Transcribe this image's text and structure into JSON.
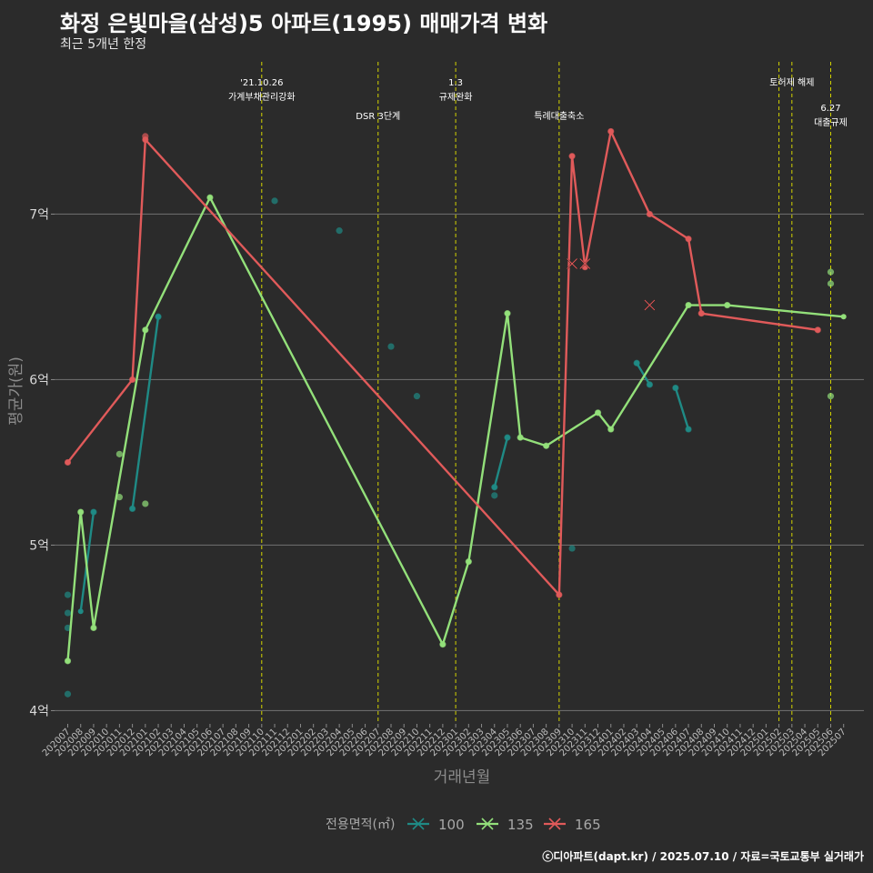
{
  "header": {
    "title": "화정 은빛마을(삼성)5 아파트(1995) 매매가격 변화",
    "subtitle": "최근 5개년 한정"
  },
  "footer": {
    "caption": "ⓒ디아파트(dapt.kr) / 2025.07.10 / 자료=국토교통부 실거래가"
  },
  "colors": {
    "background": "#2b2b2b",
    "grid": "#6a6a6a",
    "event_line": "#d4d400",
    "100": "#1f8a85",
    "135": "#93e07a",
    "165": "#e05a5a"
  },
  "chart_data": {
    "type": "line",
    "title": "화정 은빛마을(삼성)5 아파트(1995) 매매가격 변화",
    "subtitle": "최근 5개년 한정",
    "xlabel": "거래년월",
    "ylabel": "평균가(원)",
    "x_categories": [
      "202007",
      "202008",
      "202009",
      "202010",
      "202011",
      "202012",
      "202101",
      "202102",
      "202103",
      "202104",
      "202105",
      "202106",
      "202107",
      "202108",
      "202109",
      "202110",
      "202111",
      "202112",
      "202201",
      "202202",
      "202203",
      "202204",
      "202205",
      "202206",
      "202207",
      "202208",
      "202209",
      "202210",
      "202211",
      "202212",
      "202301",
      "202302",
      "202303",
      "202304",
      "202305",
      "202306",
      "202307",
      "202308",
      "202309",
      "202310",
      "202311",
      "202312",
      "202401",
      "202402",
      "202403",
      "202404",
      "202405",
      "202406",
      "202407",
      "202408",
      "202409",
      "202410",
      "202411",
      "202412",
      "202501",
      "202502",
      "202503",
      "202504",
      "202505",
      "202506",
      "202507"
    ],
    "y_ticks": [
      {
        "value": 4.0,
        "label": "4억"
      },
      {
        "value": 5.0,
        "label": "5억"
      },
      {
        "value": 6.0,
        "label": "6억"
      },
      {
        "value": 7.0,
        "label": "7억"
      }
    ],
    "ylim": [
      3.92,
      7.92
    ],
    "y_unit": "억",
    "grid": true,
    "legend": {
      "title": "전용면적(㎡)",
      "position": "bottom",
      "entries": [
        "100",
        "135",
        "165"
      ]
    },
    "series": [
      {
        "name": "100",
        "line": [
          [
            "202008",
            4.6
          ],
          [
            "202009",
            5.2
          ],
          null,
          [
            "202012",
            5.22
          ],
          [
            "202102",
            6.38
          ],
          null,
          [
            "202304",
            5.35
          ],
          [
            "202305",
            5.65
          ],
          null,
          [
            "202403",
            6.1
          ],
          [
            "202404",
            5.97
          ],
          null,
          [
            "202406",
            5.95
          ],
          [
            "202407",
            5.7
          ]
        ],
        "points": [
          [
            "202007",
            4.1
          ],
          [
            "202007",
            4.5
          ],
          [
            "202007",
            4.59
          ],
          [
            "202007",
            4.7
          ],
          [
            "202009",
            5.2
          ],
          [
            "202012",
            5.22
          ],
          [
            "202102",
            6.38
          ],
          [
            "202111",
            7.08
          ],
          [
            "202204",
            6.9
          ],
          [
            "202208",
            6.2
          ],
          [
            "202210",
            5.9
          ],
          [
            "202304",
            5.3
          ],
          [
            "202304",
            5.35
          ],
          [
            "202305",
            5.65
          ],
          [
            "202310",
            4.98
          ],
          [
            "202403",
            6.1
          ],
          [
            "202404",
            5.97
          ],
          [
            "202406",
            5.95
          ],
          [
            "202407",
            5.7
          ]
        ]
      },
      {
        "name": "135",
        "line": [
          [
            "202007",
            4.3
          ],
          [
            "202008",
            5.2
          ],
          [
            "202009",
            4.5
          ],
          [
            "202101",
            6.3
          ],
          [
            "202106",
            7.1
          ],
          [
            "202212",
            4.4
          ],
          [
            "202302",
            4.9
          ],
          [
            "202305",
            6.4
          ],
          [
            "202306",
            5.65
          ],
          [
            "202308",
            5.6
          ],
          [
            "202312",
            5.8
          ],
          [
            "202401",
            5.7
          ],
          [
            "202407",
            6.45
          ],
          [
            "202410",
            6.45
          ],
          [
            "202507",
            6.38
          ]
        ],
        "points": [
          [
            "202007",
            4.3
          ],
          [
            "202008",
            5.2
          ],
          [
            "202009",
            4.5
          ],
          [
            "202011",
            5.29
          ],
          [
            "202011",
            5.55
          ],
          [
            "202101",
            5.25
          ],
          [
            "202101",
            6.3
          ],
          [
            "202106",
            7.1
          ],
          [
            "202212",
            4.4
          ],
          [
            "202302",
            4.9
          ],
          [
            "202305",
            6.4
          ],
          [
            "202306",
            5.65
          ],
          [
            "202308",
            5.6
          ],
          [
            "202312",
            5.8
          ],
          [
            "202401",
            5.7
          ],
          [
            "202407",
            6.45
          ],
          [
            "202410",
            6.45
          ],
          [
            "202506",
            6.65
          ],
          [
            "202506",
            6.58
          ],
          [
            "202506",
            5.9
          ]
        ]
      },
      {
        "name": "165",
        "line": [
          [
            "202007",
            5.5
          ],
          [
            "202012",
            6.0
          ],
          [
            "202101",
            7.45
          ],
          [
            "202309",
            4.7
          ],
          [
            "202310",
            7.35
          ],
          [
            "202311",
            6.68
          ],
          [
            "202401",
            7.5
          ],
          [
            "202404",
            7.0
          ],
          [
            "202407",
            6.85
          ],
          [
            "202408",
            6.4
          ],
          [
            "202505",
            6.3
          ]
        ],
        "points": [
          [
            "202007",
            5.5
          ],
          [
            "202012",
            6.0
          ],
          [
            "202101",
            7.47
          ],
          [
            "202101",
            7.45
          ],
          [
            "202309",
            4.7
          ],
          [
            "202310",
            7.35
          ],
          [
            "202311",
            6.68
          ],
          [
            "202401",
            7.5
          ],
          [
            "202404",
            7.0
          ],
          [
            "202407",
            6.85
          ],
          [
            "202408",
            6.4
          ],
          [
            "202505",
            6.3
          ]
        ],
        "cancelled": [
          [
            "202310",
            6.7
          ],
          [
            "202311",
            6.7
          ],
          [
            "202404",
            6.45
          ]
        ]
      }
    ],
    "events": [
      {
        "x": "202110",
        "label_lines": [
          "'21.10.26",
          "가계부채관리강화"
        ],
        "row": "top"
      },
      {
        "x": "202207",
        "label_lines": [
          "DSR 3단계"
        ],
        "row": "bottom"
      },
      {
        "x": "202301",
        "label_lines": [
          "1.3",
          "규제완화"
        ],
        "row": "top"
      },
      {
        "x": "202309",
        "label_lines": [
          "특례대출축소"
        ],
        "row": "bottom"
      },
      {
        "x": "202502",
        "label_lines": [],
        "row": "top"
      },
      {
        "x": "202503",
        "label_lines": [
          "토허제 해제"
        ],
        "row": "top"
      },
      {
        "x": "202506",
        "label_lines": [
          "6.27",
          "대출규제"
        ],
        "row": "bottom"
      }
    ]
  }
}
